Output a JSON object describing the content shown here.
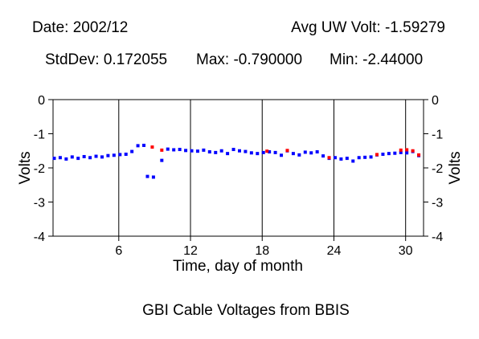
{
  "header": {
    "date_text": "Date: 2002/12",
    "avg_text": "Avg UW Volt: -1.59279",
    "stddev_text": "StdDev: 0.172055",
    "max_text": "Max: -0.790000",
    "min_text": "Min: -2.44000"
  },
  "chart_data": {
    "type": "scatter",
    "title": "GBI Cable Voltages from BBIS",
    "xlabel": "Time, day of month",
    "ylabel": "Volts",
    "ylabel_right": "Volts",
    "xlim": [
      0.5,
      31.5
    ],
    "ylim": [
      -4,
      0
    ],
    "xticks": [
      6,
      12,
      18,
      24,
      30
    ],
    "yticks": [
      0,
      -1,
      -2,
      -3,
      -4
    ],
    "grid": "vertical lines at x ticks",
    "colors": {
      "primary": "#0000ff",
      "secondary": "#ff0000"
    },
    "series": [
      {
        "color": "#0000ff",
        "points": [
          [
            0.6,
            -1.72
          ],
          [
            1.1,
            -1.7
          ],
          [
            1.6,
            -1.74
          ],
          [
            2.1,
            -1.68
          ],
          [
            2.6,
            -1.72
          ],
          [
            3.1,
            -1.67
          ],
          [
            3.6,
            -1.7
          ],
          [
            4.1,
            -1.66
          ],
          [
            4.6,
            -1.68
          ],
          [
            5.1,
            -1.64
          ],
          [
            5.6,
            -1.63
          ],
          [
            6.1,
            -1.61
          ],
          [
            6.6,
            -1.6
          ],
          [
            7.1,
            -1.52
          ],
          [
            7.6,
            -1.35
          ],
          [
            8.1,
            -1.34
          ],
          [
            8.4,
            -2.25
          ],
          [
            8.9,
            -2.27
          ],
          [
            9.6,
            -1.78
          ],
          [
            10.1,
            -1.45
          ],
          [
            10.6,
            -1.47
          ],
          [
            11.1,
            -1.46
          ],
          [
            11.6,
            -1.49
          ],
          [
            12.1,
            -1.5
          ],
          [
            12.6,
            -1.51
          ],
          [
            13.1,
            -1.48
          ],
          [
            13.6,
            -1.53
          ],
          [
            14.1,
            -1.55
          ],
          [
            14.6,
            -1.5
          ],
          [
            15.1,
            -1.58
          ],
          [
            15.6,
            -1.46
          ],
          [
            16.1,
            -1.5
          ],
          [
            16.6,
            -1.52
          ],
          [
            17.1,
            -1.56
          ],
          [
            17.6,
            -1.58
          ],
          [
            18.1,
            -1.55
          ],
          [
            18.6,
            -1.53
          ],
          [
            19.1,
            -1.55
          ],
          [
            19.6,
            -1.63
          ],
          [
            20.1,
            -1.5
          ],
          [
            20.6,
            -1.58
          ],
          [
            21.1,
            -1.62
          ],
          [
            21.6,
            -1.54
          ],
          [
            22.1,
            -1.56
          ],
          [
            22.6,
            -1.53
          ],
          [
            23.1,
            -1.65
          ],
          [
            23.6,
            -1.72
          ],
          [
            24.1,
            -1.7
          ],
          [
            24.6,
            -1.74
          ],
          [
            25.1,
            -1.72
          ],
          [
            25.6,
            -1.8
          ],
          [
            26.1,
            -1.7
          ],
          [
            26.6,
            -1.69
          ],
          [
            27.1,
            -1.68
          ],
          [
            27.6,
            -1.62
          ],
          [
            28.1,
            -1.6
          ],
          [
            28.6,
            -1.58
          ],
          [
            29.1,
            -1.57
          ],
          [
            29.6,
            -1.55
          ],
          [
            30.1,
            -1.56
          ],
          [
            30.6,
            -1.52
          ],
          [
            31.1,
            -1.64
          ]
        ]
      },
      {
        "color": "#ff0000",
        "points": [
          [
            8.8,
            -1.39
          ],
          [
            9.6,
            -1.48
          ],
          [
            18.4,
            -1.51
          ],
          [
            20.1,
            -1.49
          ],
          [
            23.6,
            -1.7
          ],
          [
            27.6,
            -1.61
          ],
          [
            29.6,
            -1.48
          ],
          [
            30.1,
            -1.47
          ],
          [
            30.6,
            -1.5
          ],
          [
            31.1,
            -1.62
          ]
        ]
      }
    ]
  }
}
